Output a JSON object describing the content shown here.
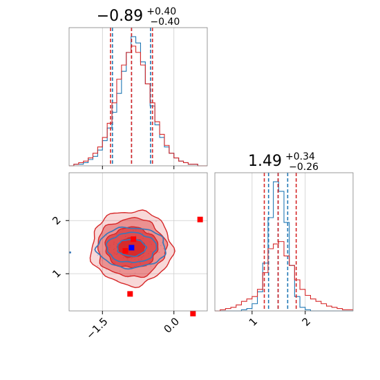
{
  "chart_data": [
    {
      "type": "histogram",
      "panel": "param1-marginal",
      "title": {
        "value": "−0.89",
        "upper": "+0.40",
        "lower": "−0.40"
      },
      "xlim": [
        -2.2,
        0.7
      ],
      "grid": true,
      "series": [
        {
          "name": "",
          "color": "#1f77b4",
          "quantiles": [
            -1.29,
            -0.89,
            -0.49
          ],
          "bin_centers": [
            -2.15,
            -2.05,
            -1.95,
            -1.85,
            -1.75,
            -1.65,
            -1.55,
            -1.45,
            -1.35,
            -1.25,
            -1.15,
            -1.05,
            -0.95,
            -0.85,
            -0.75,
            -0.65,
            -0.55,
            -0.45,
            -0.35,
            -0.25,
            -0.15,
            -0.05,
            0.05,
            0.15,
            0.25,
            0.35,
            0.45,
            0.55,
            0.65
          ],
          "counts": [
            0,
            1,
            1,
            2,
            4,
            6,
            10,
            16,
            24,
            34,
            46,
            60,
            72,
            82,
            78,
            66,
            52,
            38,
            26,
            18,
            12,
            8,
            5,
            3,
            2,
            1,
            1,
            0,
            0
          ]
        },
        {
          "name": "",
          "color": "#d62728",
          "quantiles": [
            -1.33,
            -0.89,
            -0.45
          ],
          "bin_centers": [
            -2.15,
            -2.05,
            -1.95,
            -1.85,
            -1.75,
            -1.65,
            -1.55,
            -1.45,
            -1.35,
            -1.25,
            -1.15,
            -1.05,
            -0.95,
            -0.85,
            -0.75,
            -0.65,
            -0.55,
            -0.45,
            -0.35,
            -0.25,
            -0.15,
            -0.05,
            0.05,
            0.15,
            0.25,
            0.35,
            0.45,
            0.55,
            0.65
          ],
          "counts": [
            0,
            1,
            2,
            3,
            5,
            8,
            12,
            18,
            27,
            40,
            55,
            64,
            72,
            76,
            72,
            64,
            52,
            40,
            28,
            20,
            13,
            8,
            5,
            3,
            2,
            1,
            1,
            0,
            0
          ]
        }
      ],
      "yticks": []
    },
    {
      "type": "contour",
      "panel": "param1-vs-param2",
      "xlim": [
        -2.2,
        0.7
      ],
      "ylim": [
        0.3,
        2.9
      ],
      "xticks": [
        -1.5,
        0.0
      ],
      "xtick_labels": [
        "−1.5",
        "0.0"
      ],
      "yticks": [
        1,
        2
      ],
      "ytick_labels": [
        "1",
        "2"
      ],
      "grid": true,
      "series": [
        {
          "name": "",
          "color": "#d62728",
          "center": [
            -0.89,
            1.49
          ],
          "levels_sigma": [
            [
              0.28,
              0.18
            ],
            [
              0.55,
              0.38
            ],
            [
              0.72,
              0.55
            ],
            [
              0.85,
              0.7
            ]
          ],
          "outliers": [
            [
              0.55,
              2.02
            ],
            [
              -0.85,
              1.65
            ],
            [
              -1.02,
              1.43
            ],
            [
              -0.92,
              0.62
            ],
            [
              0.4,
              0.25
            ]
          ]
        },
        {
          "name": "",
          "color": "#1f77b4",
          "center": [
            -0.89,
            1.49
          ],
          "levels_sigma": [
            [
              0.3,
              0.16
            ],
            [
              0.52,
              0.28
            ],
            [
              0.72,
              0.38
            ]
          ],
          "outliers": [
            [
              -0.89,
              1.49
            ]
          ]
        }
      ]
    },
    {
      "type": "histogram",
      "panel": "param2-marginal",
      "title": {
        "value": "1.49",
        "upper": "+0.34",
        "lower": "−0.26"
      },
      "xlim": [
        0.3,
        2.9
      ],
      "xticks": [
        1,
        2
      ],
      "xtick_labels": [
        "1",
        "2"
      ],
      "grid": true,
      "series": [
        {
          "name": "",
          "color": "#1f77b4",
          "quantiles": [
            1.31,
            1.49,
            1.67
          ],
          "bin_centers": [
            0.35,
            0.45,
            0.55,
            0.65,
            0.75,
            0.85,
            0.95,
            1.05,
            1.15,
            1.25,
            1.35,
            1.45,
            1.55,
            1.65,
            1.75,
            1.85,
            1.95,
            2.05,
            2.15,
            2.25,
            2.35,
            2.45,
            2.55,
            2.65,
            2.75,
            2.85
          ],
          "counts": [
            0,
            0,
            0,
            0,
            0,
            1,
            2,
            6,
            16,
            40,
            78,
            108,
            100,
            74,
            38,
            12,
            3,
            1,
            0,
            0,
            0,
            0,
            0,
            0,
            0,
            0
          ]
        },
        {
          "name": "",
          "color": "#d62728",
          "quantiles": [
            1.23,
            1.49,
            1.83
          ],
          "bin_centers": [
            0.35,
            0.45,
            0.55,
            0.65,
            0.75,
            0.85,
            0.95,
            1.05,
            1.15,
            1.25,
            1.35,
            1.45,
            1.55,
            1.65,
            1.75,
            1.85,
            1.95,
            2.05,
            2.15,
            2.25,
            2.35,
            2.45,
            2.55,
            2.65,
            2.75,
            2.85
          ],
          "counts": [
            0,
            1,
            2,
            3,
            5,
            8,
            10,
            12,
            18,
            32,
            52,
            56,
            58,
            46,
            38,
            26,
            18,
            13,
            10,
            8,
            6,
            4,
            3,
            2,
            1,
            1
          ]
        }
      ],
      "yticks": []
    }
  ]
}
